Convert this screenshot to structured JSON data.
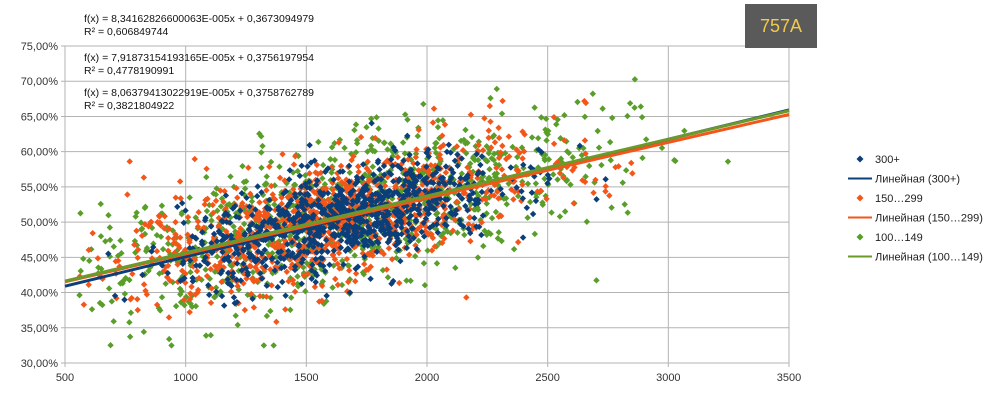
{
  "badge": "757A",
  "chart_data": {
    "type": "scatter",
    "title": "",
    "xlabel": "",
    "ylabel": "",
    "xlim": [
      500,
      3500
    ],
    "ylim": [
      0.3,
      0.75
    ],
    "x_ticks": [
      "500",
      "1000",
      "1500",
      "2000",
      "2500",
      "3000",
      "3500"
    ],
    "y_ticks": [
      "30,00%",
      "35,00%",
      "40,00%",
      "45,00%",
      "50,00%",
      "55,00%",
      "60,00%",
      "65,00%",
      "70,00%",
      "75,00%"
    ],
    "grid": true,
    "legend_position": "right",
    "equations": [
      {
        "formula": "f(x) = 8,34162826600063E-005x + 0,3673094979",
        "r2": "R² = 0,606849744"
      },
      {
        "formula": "f(x) = 7,91873154193165E-005x + 0,3756197954",
        "r2": "R² = 0,4778190991"
      },
      {
        "formula": "f(x) = 8,06379413022919E-005x + 0,3758762789",
        "r2": "R² = 0,3821804922"
      }
    ],
    "series": [
      {
        "name": "300+",
        "color": "#0b3f7a",
        "count": 900,
        "slope": 8.34162826600063e-05,
        "intercept": 0.3673094979,
        "spread": 0.035,
        "x_range": [
          560,
          3050
        ],
        "x_center": 1650,
        "x_sd": 330
      },
      {
        "name": "150…299",
        "color": "#f4561a",
        "count": 1000,
        "slope": 7.91873154193165e-05,
        "intercept": 0.3756197954,
        "spread": 0.042,
        "x_range": [
          560,
          3060
        ],
        "x_center": 1600,
        "x_sd": 420
      },
      {
        "name": "100…149",
        "color": "#5a9e2a",
        "count": 1000,
        "slope": 8.06379413022919e-05,
        "intercept": 0.3758762789,
        "spread": 0.05,
        "x_range": [
          560,
          3350
        ],
        "x_center": 1650,
        "x_sd": 520
      }
    ],
    "trendlines": [
      {
        "name": "Линейная (300+)",
        "color": "#0b3f7a",
        "slope": 8.34162826600063e-05,
        "intercept": 0.3673094979
      },
      {
        "name": "Линейная (150…299)",
        "color": "#f4561a",
        "slope": 7.91873154193165e-05,
        "intercept": 0.3756197954
      },
      {
        "name": "Линейная (100…149)",
        "color": "#6b9a2a",
        "slope": 8.06379413022919e-05,
        "intercept": 0.3758762789
      }
    ],
    "legend": [
      {
        "label": "300+",
        "kind": "marker",
        "color": "#0b3f7a"
      },
      {
        "label": "Линейная (300+)",
        "kind": "line",
        "color": "#0b3f7a"
      },
      {
        "label": "150…299",
        "kind": "marker",
        "color": "#f4561a"
      },
      {
        "label": "Линейная (150…299)",
        "kind": "line",
        "color": "#f4561a"
      },
      {
        "label": "100…149",
        "kind": "marker",
        "color": "#5a9e2a"
      },
      {
        "label": "Линейная (100…149)",
        "kind": "line",
        "color": "#6b9a2a"
      }
    ]
  }
}
